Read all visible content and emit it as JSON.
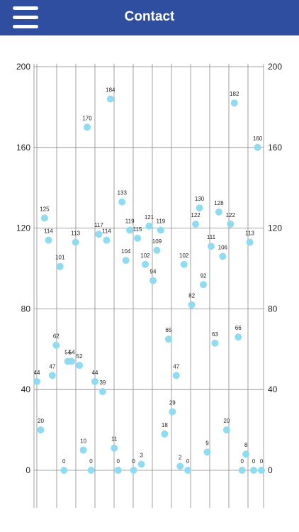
{
  "header": {
    "title": "Contact",
    "menu_icon": "hamburger-menu-icon",
    "background_color": "#2f4ea0"
  },
  "chart_data": {
    "type": "scatter",
    "title": "",
    "xlabel": "",
    "ylabel": "",
    "ylim": [
      0,
      200
    ],
    "yticks": [
      0,
      40,
      80,
      120,
      160,
      200
    ],
    "ytick_labels_left": [
      "0",
      "40",
      "80",
      "120",
      "160",
      "200"
    ],
    "ytick_labels_right": [
      "0",
      "40",
      "80",
      "120",
      "160",
      "200"
    ],
    "grid": true,
    "point_color": "#8fdcf2",
    "series": [
      {
        "values": [
          44,
          20,
          125,
          114,
          47,
          62,
          101,
          0,
          54,
          54,
          113,
          52,
          10,
          170,
          0,
          44,
          117,
          39,
          114,
          184,
          11,
          0,
          133,
          104,
          119,
          0,
          115,
          3,
          102,
          121,
          94,
          109,
          119,
          18,
          65,
          29,
          47,
          2,
          102,
          0,
          82,
          122,
          130,
          92,
          9,
          111,
          63,
          128,
          106,
          20,
          122,
          182,
          66,
          0,
          8,
          113,
          0,
          160,
          0
        ],
        "labels": [
          "44",
          "20",
          "125",
          "114",
          "47",
          "62",
          "101",
          "0",
          "54",
          "54",
          "113",
          "52",
          "10",
          "170",
          "0",
          "44",
          "117",
          "39",
          "114",
          "184",
          "11",
          "0",
          "133",
          "104",
          "119",
          "0",
          "115",
          "3",
          "102",
          "121",
          "94",
          "109",
          "119",
          "18",
          "65",
          "29",
          "47",
          "2",
          "102",
          "0",
          "82",
          "122",
          "130",
          "92",
          "9",
          "111",
          "63",
          "128",
          "106",
          "20",
          "122",
          "182",
          "66",
          "0",
          "8",
          "113",
          "0",
          "160",
          "0"
        ]
      }
    ]
  }
}
